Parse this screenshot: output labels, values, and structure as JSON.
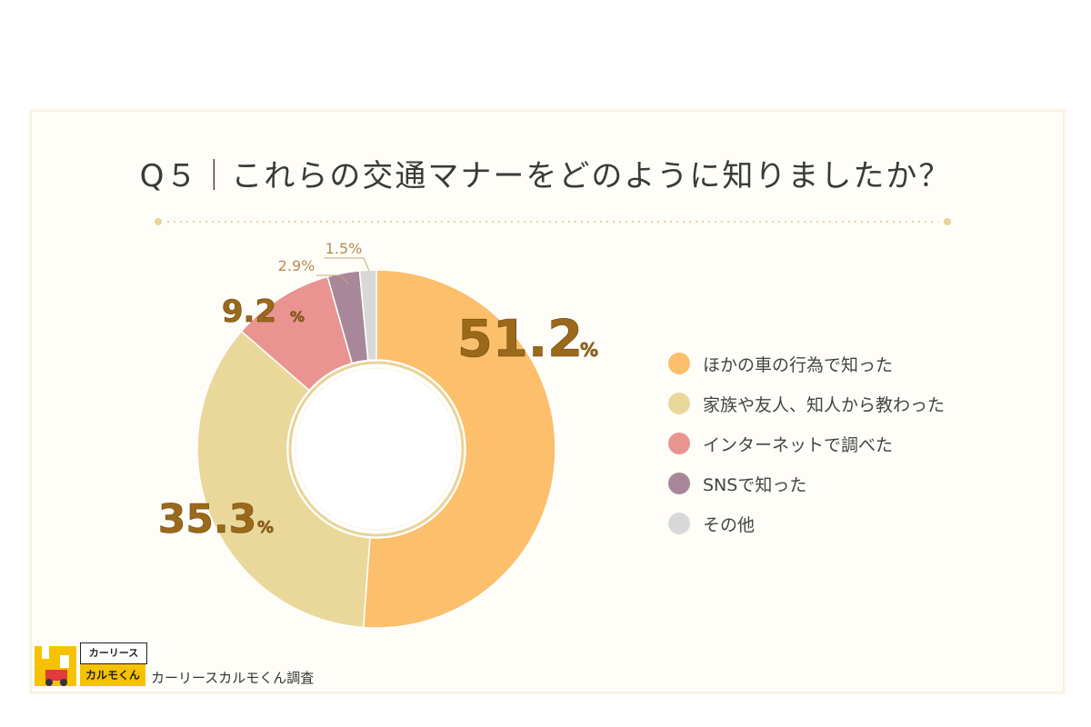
{
  "title": "Q５｜これらの交通マナーをどのように知りましたか？",
  "colors": {
    "divider": "#e8d39a",
    "inner_ring": "#e8d39a"
  },
  "chart_data": {
    "type": "pie",
    "style": "donut",
    "title": "Q５｜これらの交通マナーをどのように知りましたか？",
    "legend_position": "right",
    "unit": "%",
    "slices": [
      {
        "label": "ほかの車の行為で知った",
        "value": 51.2,
        "display": "51.2",
        "color": "#fcbf6b"
      },
      {
        "label": "家族や友人、知人から教わった",
        "value": 35.3,
        "display": "35.3",
        "color": "#ead89b"
      },
      {
        "label": "インターネットで調べた",
        "value": 9.2,
        "display": "9.2",
        "color": "#e99490"
      },
      {
        "label": "SNSで知った",
        "value": 2.9,
        "display": "2.9%",
        "color": "#a8879a"
      },
      {
        "label": "その他",
        "value": 1.5,
        "display": "1.5%",
        "color": "#d8d8d8"
      }
    ]
  },
  "footer": {
    "logo_top": "カーリース",
    "logo_bottom": "カルモくん",
    "credit": "カーリースカルモくん調査"
  }
}
